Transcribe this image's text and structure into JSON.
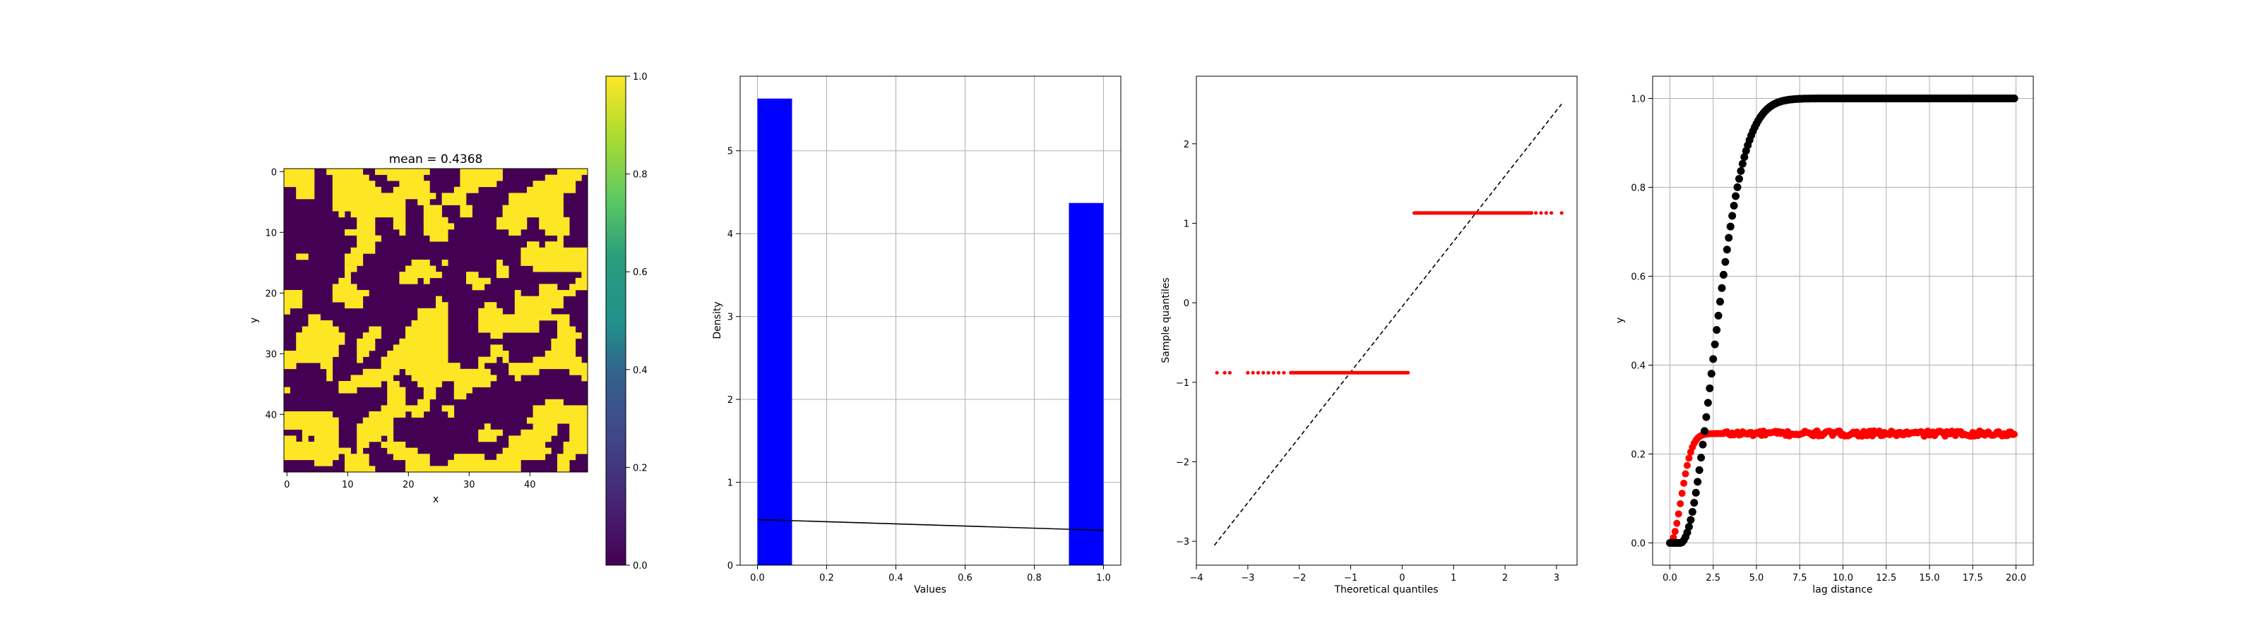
{
  "colors": {
    "viridis_low": "#440154",
    "viridis_high": "#fde725",
    "bar": "#0000ff",
    "red_points": "#ff0000",
    "black_points": "#000000",
    "grid": "#b0b0b0"
  },
  "chart_data": [
    {
      "type": "heatmap",
      "title": "mean = 0.4368",
      "xlabel": "x",
      "ylabel": "y",
      "grid_size": [
        50,
        50
      ],
      "xticks": [
        "0",
        "10",
        "20",
        "30",
        "40"
      ],
      "yticks": [
        "0",
        "10",
        "20",
        "30",
        "40"
      ],
      "colorbar": {
        "range": [
          0,
          1
        ],
        "ticks": [
          "0.0",
          "0.2",
          "0.4",
          "0.6",
          "0.8",
          "1.0"
        ]
      },
      "mean": 0.4368,
      "grid": false
    },
    {
      "type": "bar",
      "xlabel": "Values",
      "ylabel": "Density",
      "xlim": [
        -0.05,
        1.05
      ],
      "ylim": [
        0,
        5.9
      ],
      "xticks": [
        "0.0",
        "0.2",
        "0.4",
        "0.6",
        "0.8",
        "1.0"
      ],
      "yticks": [
        "0",
        "1",
        "2",
        "3",
        "4",
        "5"
      ],
      "bars": [
        {
          "x0": 0.0,
          "x1": 0.1,
          "value": 5.63
        },
        {
          "x0": 0.9,
          "x1": 1.0,
          "value": 4.37
        }
      ],
      "line": {
        "x": [
          0.0,
          1.0
        ],
        "y": [
          0.55,
          0.42
        ]
      },
      "grid": true
    },
    {
      "type": "scatter",
      "xlabel": "Theoretical quantiles",
      "ylabel": "Sample quantiles",
      "xlim": [
        -4.0,
        3.4
      ],
      "ylim": [
        -3.3,
        2.85
      ],
      "xticks": [
        "−4",
        "−3",
        "−2",
        "−1",
        "0",
        "1",
        "2",
        "3"
      ],
      "yticks": [
        "−3",
        "−2",
        "−1",
        "0",
        "1",
        "2"
      ],
      "groups": [
        {
          "level": -0.88,
          "x_range": [
            -2.2,
            0.15
          ],
          "stragglers": [
            -3.6,
            -3.45,
            -3.35,
            -3.0,
            -2.9,
            -2.8,
            -2.7,
            -2.6,
            -2.5,
            -2.4,
            -2.3
          ]
        },
        {
          "level": 1.13,
          "x_range": [
            0.2,
            2.55
          ],
          "stragglers": [
            2.6,
            2.7,
            2.8,
            2.9,
            3.1
          ]
        }
      ],
      "reference_line": {
        "x": [
          -3.65,
          3.1
        ],
        "y": [
          -3.05,
          2.5
        ]
      },
      "grid": false
    },
    {
      "type": "scatter",
      "xlabel": "lag distance",
      "ylabel": "y",
      "xlim": [
        -1.0,
        21.0
      ],
      "ylim": [
        -0.05,
        1.05
      ],
      "xticks": [
        "0.0",
        "2.5",
        "5.0",
        "7.5",
        "10.0",
        "12.5",
        "15.0",
        "17.5",
        "20.0"
      ],
      "yticks": [
        "0.0",
        "0.2",
        "0.4",
        "0.6",
        "0.8",
        "1.0"
      ],
      "series": [
        {
          "color": "black",
          "model": "cumulative_s_curve",
          "sill": 1.0,
          "range_scale": 2.6,
          "onset": 0.6,
          "n_points": 200
        },
        {
          "color": "red",
          "model": "rapid_plateau",
          "sill": 0.246,
          "range_scale": 0.9,
          "n_points": 200
        }
      ],
      "grid": true
    }
  ]
}
